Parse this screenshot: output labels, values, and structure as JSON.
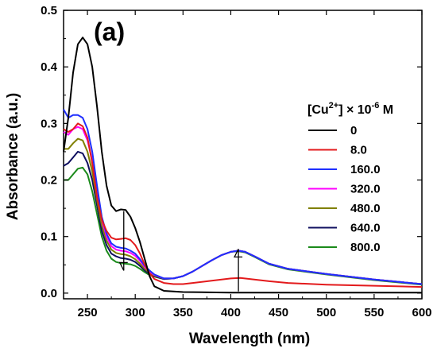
{
  "chart_data": {
    "type": "line",
    "panel_label": "(a)",
    "xlabel": "Wavelength (nm)",
    "ylabel": "Absorbance (a.u.)",
    "xlim": [
      225,
      600
    ],
    "ylim": [
      -0.01,
      0.5
    ],
    "xticks": [
      250,
      300,
      350,
      400,
      450,
      500,
      550,
      600
    ],
    "yticks": [
      0.0,
      0.1,
      0.2,
      0.3,
      0.4,
      0.5
    ],
    "ytick_labels": [
      "0.0",
      "0.1",
      "0.2",
      "0.3",
      "0.4",
      "0.5"
    ],
    "grid": false,
    "legend_position": "right",
    "legend_title": {
      "prefix": "[Cu",
      "superscript": "2+",
      "middle": "] × 10",
      "exponent": "-6",
      "suffix": " M"
    },
    "series": [
      {
        "name": "0",
        "color": "#000000",
        "points": [
          [
            225,
            0.25
          ],
          [
            230,
            0.31
          ],
          [
            235,
            0.39
          ],
          [
            240,
            0.44
          ],
          [
            245,
            0.452
          ],
          [
            250,
            0.44
          ],
          [
            255,
            0.4
          ],
          [
            260,
            0.33
          ],
          [
            265,
            0.25
          ],
          [
            270,
            0.19
          ],
          [
            275,
            0.155
          ],
          [
            280,
            0.145
          ],
          [
            285,
            0.148
          ],
          [
            290,
            0.147
          ],
          [
            295,
            0.135
          ],
          [
            300,
            0.115
          ],
          [
            305,
            0.09
          ],
          [
            310,
            0.06
          ],
          [
            315,
            0.03
          ],
          [
            320,
            0.012
          ],
          [
            330,
            0.004
          ],
          [
            350,
            0.002
          ],
          [
            400,
            0.001
          ],
          [
            500,
            0.001
          ],
          [
            600,
            0.001
          ]
        ]
      },
      {
        "name": "8.0",
        "color": "#e31a1c",
        "points": [
          [
            225,
            0.29
          ],
          [
            230,
            0.285
          ],
          [
            235,
            0.29
          ],
          [
            240,
            0.3
          ],
          [
            245,
            0.295
          ],
          [
            250,
            0.275
          ],
          [
            255,
            0.23
          ],
          [
            260,
            0.17
          ],
          [
            265,
            0.13
          ],
          [
            270,
            0.11
          ],
          [
            275,
            0.098
          ],
          [
            280,
            0.095
          ],
          [
            285,
            0.096
          ],
          [
            290,
            0.097
          ],
          [
            295,
            0.094
          ],
          [
            300,
            0.085
          ],
          [
            305,
            0.07
          ],
          [
            310,
            0.05
          ],
          [
            315,
            0.035
          ],
          [
            320,
            0.025
          ],
          [
            330,
            0.018
          ],
          [
            340,
            0.016
          ],
          [
            350,
            0.016
          ],
          [
            360,
            0.018
          ],
          [
            380,
            0.022
          ],
          [
            400,
            0.026
          ],
          [
            410,
            0.027
          ],
          [
            420,
            0.025
          ],
          [
            440,
            0.021
          ],
          [
            460,
            0.018
          ],
          [
            500,
            0.015
          ],
          [
            550,
            0.013
          ],
          [
            600,
            0.011
          ]
        ]
      },
      {
        "name": "160.0",
        "color": "#1f2fff",
        "points": [
          [
            225,
            0.325
          ],
          [
            230,
            0.31
          ],
          [
            235,
            0.315
          ],
          [
            240,
            0.315
          ],
          [
            245,
            0.31
          ],
          [
            250,
            0.29
          ],
          [
            255,
            0.25
          ],
          [
            260,
            0.19
          ],
          [
            265,
            0.135
          ],
          [
            270,
            0.105
          ],
          [
            275,
            0.088
          ],
          [
            280,
            0.082
          ],
          [
            285,
            0.08
          ],
          [
            290,
            0.079
          ],
          [
            295,
            0.075
          ],
          [
            300,
            0.07
          ],
          [
            305,
            0.06
          ],
          [
            310,
            0.048
          ],
          [
            315,
            0.04
          ],
          [
            320,
            0.033
          ],
          [
            330,
            0.026
          ],
          [
            340,
            0.026
          ],
          [
            350,
            0.03
          ],
          [
            360,
            0.038
          ],
          [
            370,
            0.048
          ],
          [
            380,
            0.058
          ],
          [
            390,
            0.067
          ],
          [
            400,
            0.073
          ],
          [
            408,
            0.075
          ],
          [
            415,
            0.073
          ],
          [
            425,
            0.065
          ],
          [
            440,
            0.052
          ],
          [
            460,
            0.043
          ],
          [
            500,
            0.034
          ],
          [
            550,
            0.024
          ],
          [
            600,
            0.016
          ]
        ]
      },
      {
        "name": "320.0",
        "color": "#ff00ff",
        "points": [
          [
            225,
            0.285
          ],
          [
            230,
            0.28
          ],
          [
            235,
            0.29
          ],
          [
            240,
            0.294
          ],
          [
            245,
            0.29
          ],
          [
            250,
            0.27
          ],
          [
            255,
            0.235
          ],
          [
            260,
            0.18
          ],
          [
            265,
            0.13
          ],
          [
            270,
            0.1
          ],
          [
            275,
            0.083
          ],
          [
            280,
            0.077
          ],
          [
            285,
            0.075
          ],
          [
            290,
            0.074
          ],
          [
            295,
            0.071
          ],
          [
            300,
            0.066
          ],
          [
            305,
            0.057
          ],
          [
            310,
            0.046
          ],
          [
            315,
            0.038
          ],
          [
            320,
            0.032
          ],
          [
            330,
            0.026
          ],
          [
            340,
            0.026
          ],
          [
            350,
            0.03
          ],
          [
            360,
            0.038
          ],
          [
            370,
            0.048
          ],
          [
            380,
            0.058
          ],
          [
            390,
            0.067
          ],
          [
            400,
            0.073
          ],
          [
            408,
            0.075
          ],
          [
            415,
            0.073
          ],
          [
            425,
            0.065
          ],
          [
            440,
            0.052
          ],
          [
            460,
            0.043
          ],
          [
            500,
            0.034
          ],
          [
            550,
            0.024
          ],
          [
            600,
            0.016
          ]
        ]
      },
      {
        "name": "480.0",
        "color": "#808000",
        "points": [
          [
            225,
            0.255
          ],
          [
            230,
            0.255
          ],
          [
            235,
            0.265
          ],
          [
            240,
            0.273
          ],
          [
            245,
            0.27
          ],
          [
            250,
            0.25
          ],
          [
            255,
            0.215
          ],
          [
            260,
            0.165
          ],
          [
            265,
            0.12
          ],
          [
            270,
            0.093
          ],
          [
            275,
            0.077
          ],
          [
            280,
            0.071
          ],
          [
            285,
            0.069
          ],
          [
            290,
            0.068
          ],
          [
            295,
            0.065
          ],
          [
            300,
            0.06
          ],
          [
            305,
            0.052
          ],
          [
            310,
            0.043
          ],
          [
            315,
            0.036
          ],
          [
            320,
            0.031
          ],
          [
            330,
            0.026
          ],
          [
            340,
            0.026
          ],
          [
            350,
            0.03
          ],
          [
            360,
            0.038
          ],
          [
            370,
            0.048
          ],
          [
            380,
            0.058
          ],
          [
            390,
            0.067
          ],
          [
            400,
            0.073
          ],
          [
            408,
            0.075
          ],
          [
            415,
            0.073
          ],
          [
            425,
            0.065
          ],
          [
            440,
            0.052
          ],
          [
            460,
            0.043
          ],
          [
            500,
            0.034
          ],
          [
            550,
            0.024
          ],
          [
            600,
            0.016
          ]
        ]
      },
      {
        "name": "640.0",
        "color": "#101060",
        "points": [
          [
            225,
            0.225
          ],
          [
            230,
            0.23
          ],
          [
            235,
            0.24
          ],
          [
            240,
            0.25
          ],
          [
            245,
            0.247
          ],
          [
            250,
            0.23
          ],
          [
            255,
            0.2
          ],
          [
            260,
            0.155
          ],
          [
            265,
            0.11
          ],
          [
            270,
            0.085
          ],
          [
            275,
            0.07
          ],
          [
            280,
            0.065
          ],
          [
            285,
            0.062
          ],
          [
            290,
            0.061
          ],
          [
            295,
            0.059
          ],
          [
            300,
            0.055
          ],
          [
            305,
            0.048
          ],
          [
            310,
            0.04
          ],
          [
            315,
            0.034
          ],
          [
            320,
            0.03
          ],
          [
            330,
            0.025
          ],
          [
            340,
            0.026
          ],
          [
            350,
            0.03
          ],
          [
            360,
            0.038
          ],
          [
            370,
            0.048
          ],
          [
            380,
            0.058
          ],
          [
            390,
            0.067
          ],
          [
            400,
            0.073
          ],
          [
            408,
            0.075
          ],
          [
            415,
            0.073
          ],
          [
            425,
            0.065
          ],
          [
            440,
            0.052
          ],
          [
            460,
            0.043
          ],
          [
            500,
            0.034
          ],
          [
            550,
            0.024
          ],
          [
            600,
            0.016
          ]
        ]
      },
      {
        "name": "800.0",
        "color": "#1a8a1a",
        "points": [
          [
            225,
            0.2
          ],
          [
            230,
            0.2
          ],
          [
            235,
            0.21
          ],
          [
            240,
            0.22
          ],
          [
            245,
            0.222
          ],
          [
            250,
            0.21
          ],
          [
            255,
            0.18
          ],
          [
            260,
            0.14
          ],
          [
            265,
            0.1
          ],
          [
            270,
            0.075
          ],
          [
            275,
            0.061
          ],
          [
            280,
            0.055
          ],
          [
            285,
            0.053
          ],
          [
            290,
            0.052
          ],
          [
            295,
            0.051
          ],
          [
            300,
            0.048
          ],
          [
            305,
            0.043
          ],
          [
            310,
            0.037
          ],
          [
            315,
            0.032
          ],
          [
            320,
            0.029
          ],
          [
            330,
            0.025
          ],
          [
            340,
            0.026
          ],
          [
            350,
            0.03
          ],
          [
            360,
            0.038
          ],
          [
            370,
            0.048
          ],
          [
            380,
            0.058
          ],
          [
            390,
            0.067
          ],
          [
            400,
            0.073
          ],
          [
            408,
            0.074
          ],
          [
            415,
            0.072
          ],
          [
            425,
            0.064
          ],
          [
            440,
            0.051
          ],
          [
            460,
            0.042
          ],
          [
            500,
            0.033
          ],
          [
            550,
            0.023
          ],
          [
            600,
            0.015
          ]
        ]
      }
    ],
    "annotations": [
      {
        "type": "arrow",
        "x": 288,
        "from_y": 0.145,
        "to_y": 0.04
      },
      {
        "type": "arrow",
        "x": 408,
        "from_y": 0.003,
        "to_y": 0.078
      }
    ]
  }
}
